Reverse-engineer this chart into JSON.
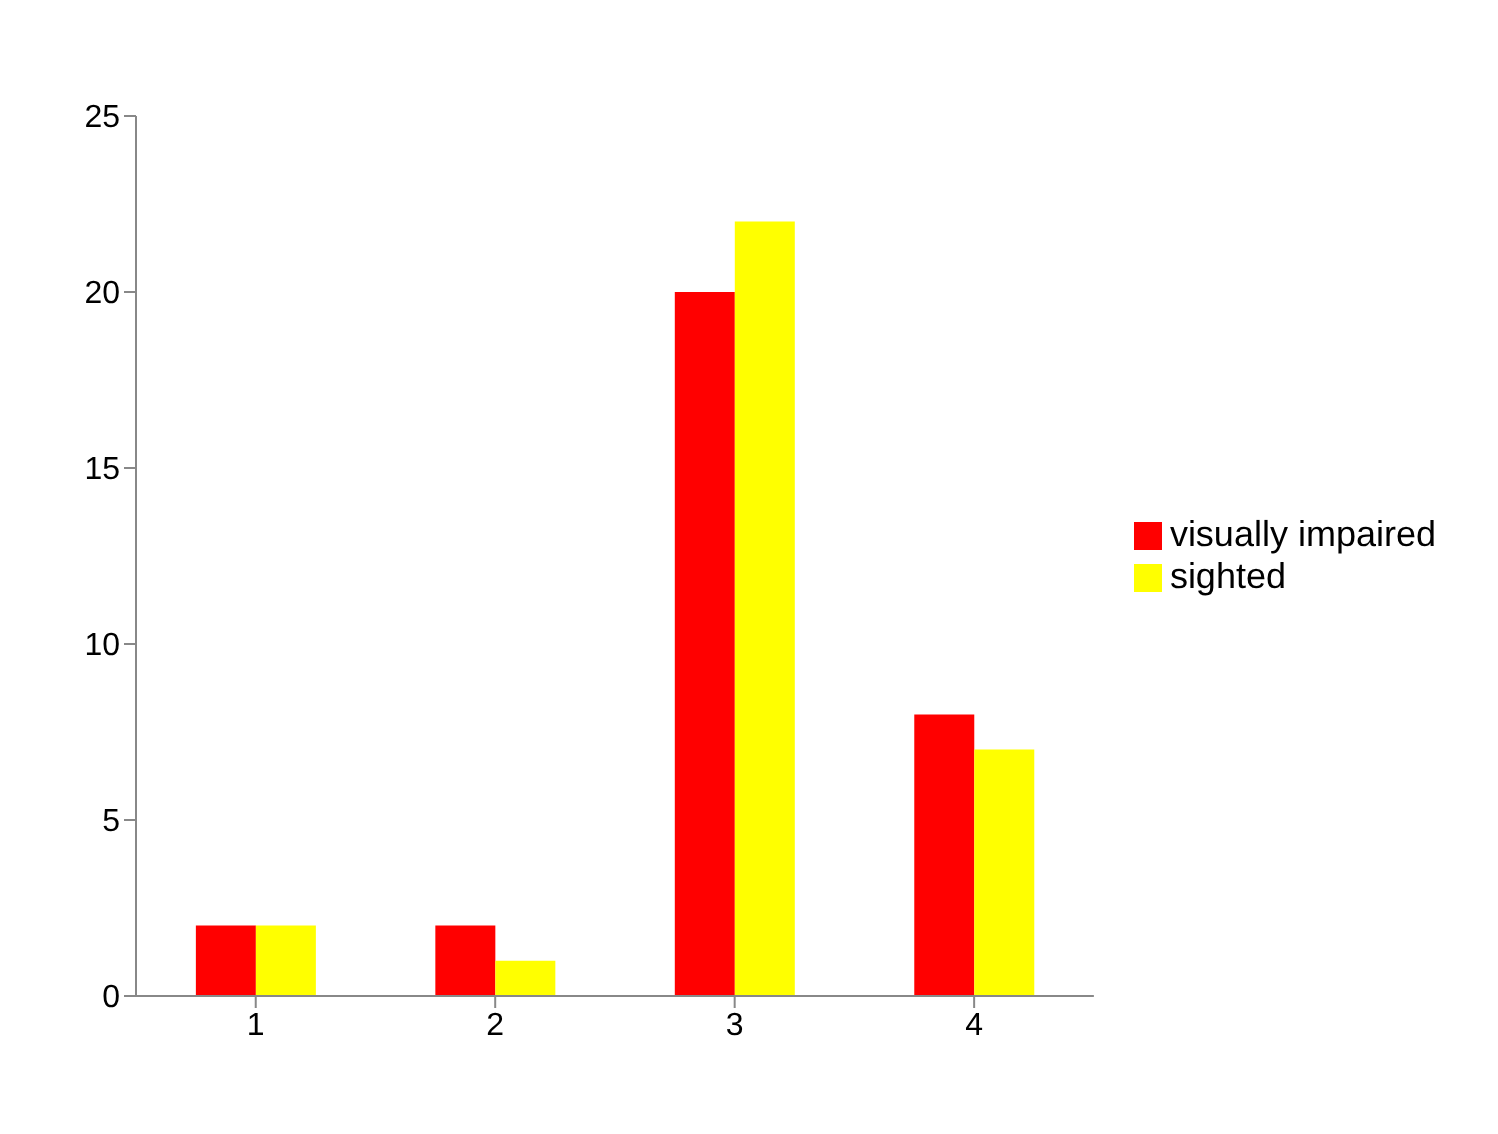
{
  "chart_data": {
    "type": "bar",
    "categories": [
      "1",
      "2",
      "3",
      "4"
    ],
    "series": [
      {
        "name": "visually impaired",
        "color": "#ff0000",
        "values": [
          2,
          2,
          20,
          8
        ]
      },
      {
        "name": "sighted",
        "color": "#ffff00",
        "values": [
          2,
          1,
          22,
          7
        ]
      }
    ],
    "ylim": [
      0,
      25
    ],
    "yticks": [
      0,
      5,
      10,
      15,
      20,
      25
    ],
    "grid": false,
    "legend": "right"
  }
}
